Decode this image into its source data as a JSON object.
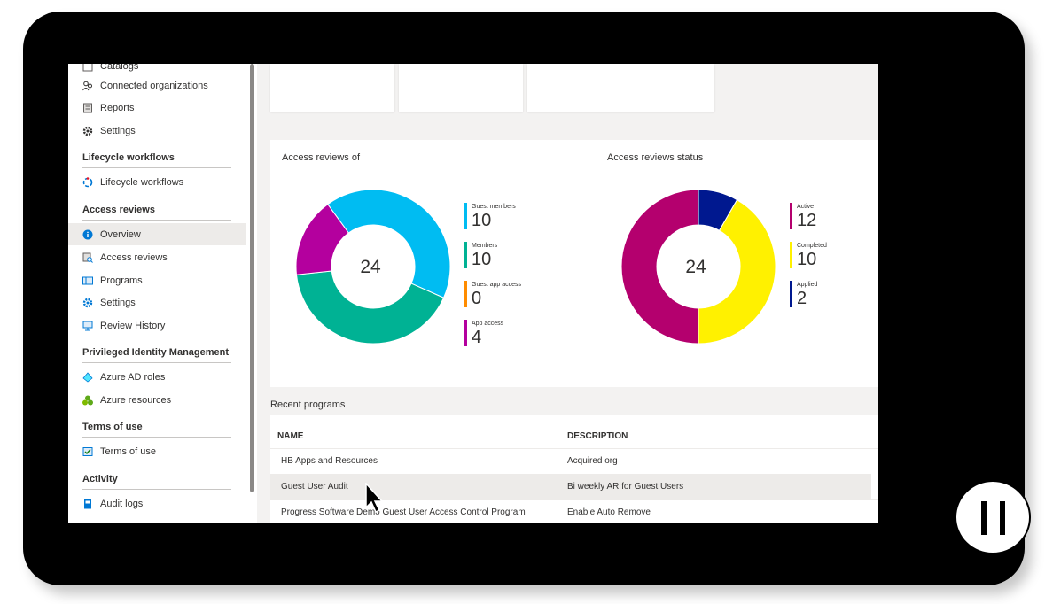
{
  "sidebar": {
    "items": [
      {
        "label": "Catalogs",
        "icon": "catalog-icon"
      },
      {
        "label": "Connected organizations",
        "icon": "people-icon"
      },
      {
        "label": "Reports",
        "icon": "report-icon"
      },
      {
        "label": "Settings",
        "icon": "gear-icon"
      }
    ],
    "sections": [
      {
        "header": "Lifecycle workflows",
        "items": [
          {
            "label": "Lifecycle workflows",
            "icon": "workflow-icon"
          }
        ]
      },
      {
        "header": "Access reviews",
        "items": [
          {
            "label": "Overview",
            "icon": "info-icon"
          },
          {
            "label": "Access reviews",
            "icon": "access-review-icon"
          },
          {
            "label": "Programs",
            "icon": "programs-icon"
          },
          {
            "label": "Settings",
            "icon": "gear-blue-icon"
          },
          {
            "label": "Review History",
            "icon": "history-icon"
          }
        ]
      },
      {
        "header": "Privileged Identity Management",
        "items": [
          {
            "label": "Azure AD roles",
            "icon": "azure-ad-icon"
          },
          {
            "label": "Azure resources",
            "icon": "azure-resources-icon"
          }
        ]
      },
      {
        "header": "Terms of use",
        "items": [
          {
            "label": "Terms of use",
            "icon": "terms-icon"
          }
        ]
      },
      {
        "header": "Activity",
        "items": [
          {
            "label": "Audit logs",
            "icon": "audit-log-icon"
          }
        ]
      }
    ]
  },
  "charts": {
    "reviews_of": {
      "title": "Access reviews of",
      "total": "24",
      "legend": [
        {
          "label": "Guest members",
          "value": "10",
          "color": "#00bcf2"
        },
        {
          "label": "Members",
          "value": "10",
          "color": "#00b294"
        },
        {
          "label": "Guest app access",
          "value": "0",
          "color": "#ff8c00"
        },
        {
          "label": "App access",
          "value": "4",
          "color": "#b4009e"
        }
      ]
    },
    "status": {
      "title": "Access reviews status",
      "total": "24",
      "legend": [
        {
          "label": "Active",
          "value": "12",
          "color": "#b4006e"
        },
        {
          "label": "Completed",
          "value": "10",
          "color": "#fff100"
        },
        {
          "label": "Applied",
          "value": "2",
          "color": "#00188f"
        }
      ]
    }
  },
  "chart_data": [
    {
      "type": "pie",
      "title": "Access reviews of",
      "categories": [
        "Guest members",
        "Members",
        "Guest app access",
        "App access"
      ],
      "values": [
        10,
        10,
        0,
        4
      ]
    },
    {
      "type": "pie",
      "title": "Access reviews status",
      "categories": [
        "Active",
        "Completed",
        "Applied"
      ],
      "values": [
        12,
        10,
        2
      ]
    }
  ],
  "recent_programs": {
    "title": "Recent programs",
    "columns": [
      "NAME",
      "DESCRIPTION"
    ],
    "rows": [
      {
        "name": "HB Apps and Resources",
        "description": "Acquired org"
      },
      {
        "name": "Guest User Audit",
        "description": "Bi weekly AR for Guest Users"
      },
      {
        "name": "Progress Software Demo Guest User Access Control Program",
        "description": "Enable Auto Remove"
      }
    ]
  }
}
